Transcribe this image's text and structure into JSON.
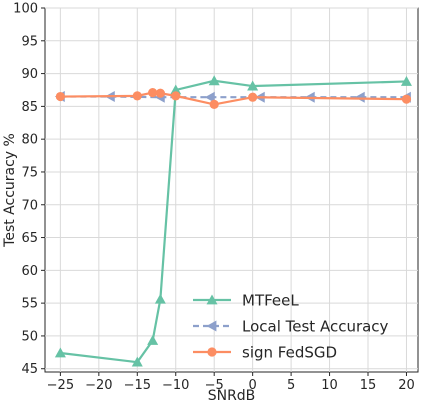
{
  "chart_data": {
    "type": "line",
    "title": "",
    "xlabel": "SNRdB",
    "ylabel": "Test Accuracy %",
    "xlim": [
      -27,
      21.5
    ],
    "ylim": [
      44.5,
      100
    ],
    "xticks": [
      -25,
      -20,
      -15,
      -10,
      -5,
      0,
      5,
      10,
      15,
      20
    ],
    "xtick_labels": [
      "−25",
      "−20",
      "−15",
      "−10",
      "−5",
      "0",
      "5",
      "10",
      "15",
      "20"
    ],
    "yticks": [
      45,
      50,
      55,
      60,
      65,
      70,
      75,
      80,
      85,
      90,
      95,
      100
    ],
    "grid": true,
    "legend_position": "bottom-right",
    "series": [
      {
        "name": "MTFeeL",
        "color": "#66c2a5",
        "marker": "triangle",
        "dash": "solid",
        "x": [
          -25,
          -15,
          -13,
          -12,
          -10,
          -5,
          0,
          20
        ],
        "y": [
          47.4,
          46.0,
          49.3,
          55.6,
          87.5,
          88.9,
          88.1,
          88.8
        ]
      },
      {
        "name": "Local Test Accuracy",
        "color": "#8da0cb",
        "marker": "triangle-left",
        "dash": "dashed",
        "x": [
          -25,
          -18.5,
          -12,
          -5.5,
          1,
          7.5,
          14,
          20
        ],
        "y": [
          86.5,
          86.5,
          86.4,
          86.4,
          86.4,
          86.4,
          86.4,
          86.4
        ]
      },
      {
        "name": "sign FedSGD",
        "color": "#fc8d62",
        "marker": "circle",
        "dash": "solid",
        "x": [
          -25,
          -15,
          -13,
          -12,
          -10,
          -5,
          0,
          20
        ],
        "y": [
          86.5,
          86.6,
          87.1,
          87.0,
          86.6,
          85.3,
          86.4,
          86.1
        ]
      }
    ]
  }
}
